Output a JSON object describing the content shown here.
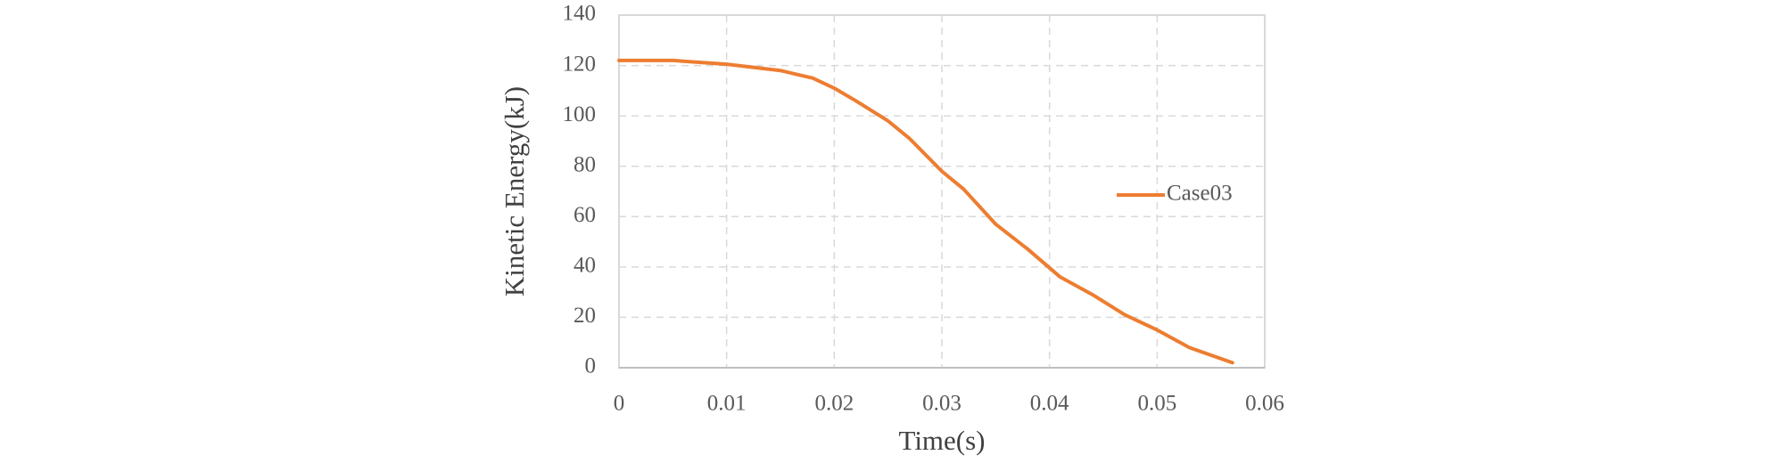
{
  "chart_data": {
    "type": "line",
    "x_label": "Time(s)",
    "y_label": "Kinetic Energy(kJ)",
    "x": [
      0,
      0.005,
      0.01,
      0.015,
      0.018,
      0.02,
      0.022,
      0.025,
      0.027,
      0.03,
      0.032,
      0.035,
      0.038,
      0.041,
      0.044,
      0.047,
      0.05,
      0.053,
      0.055,
      0.057
    ],
    "series": [
      {
        "name": "Case03",
        "color": "#ed7d31",
        "values": [
          122,
          122,
          120.5,
          118,
          115,
          111,
          106,
          98,
          91,
          78,
          71,
          57,
          47,
          36,
          29,
          21,
          15,
          8,
          5,
          2
        ]
      }
    ],
    "xlim": [
      0,
      0.06
    ],
    "xticks": [
      0,
      0.01,
      0.02,
      0.03,
      0.04,
      0.05,
      0.06
    ],
    "ylim": [
      0,
      140
    ],
    "yticks": [
      0,
      20,
      40,
      60,
      80,
      100,
      120,
      140
    ],
    "grid": true,
    "legend": "right"
  }
}
